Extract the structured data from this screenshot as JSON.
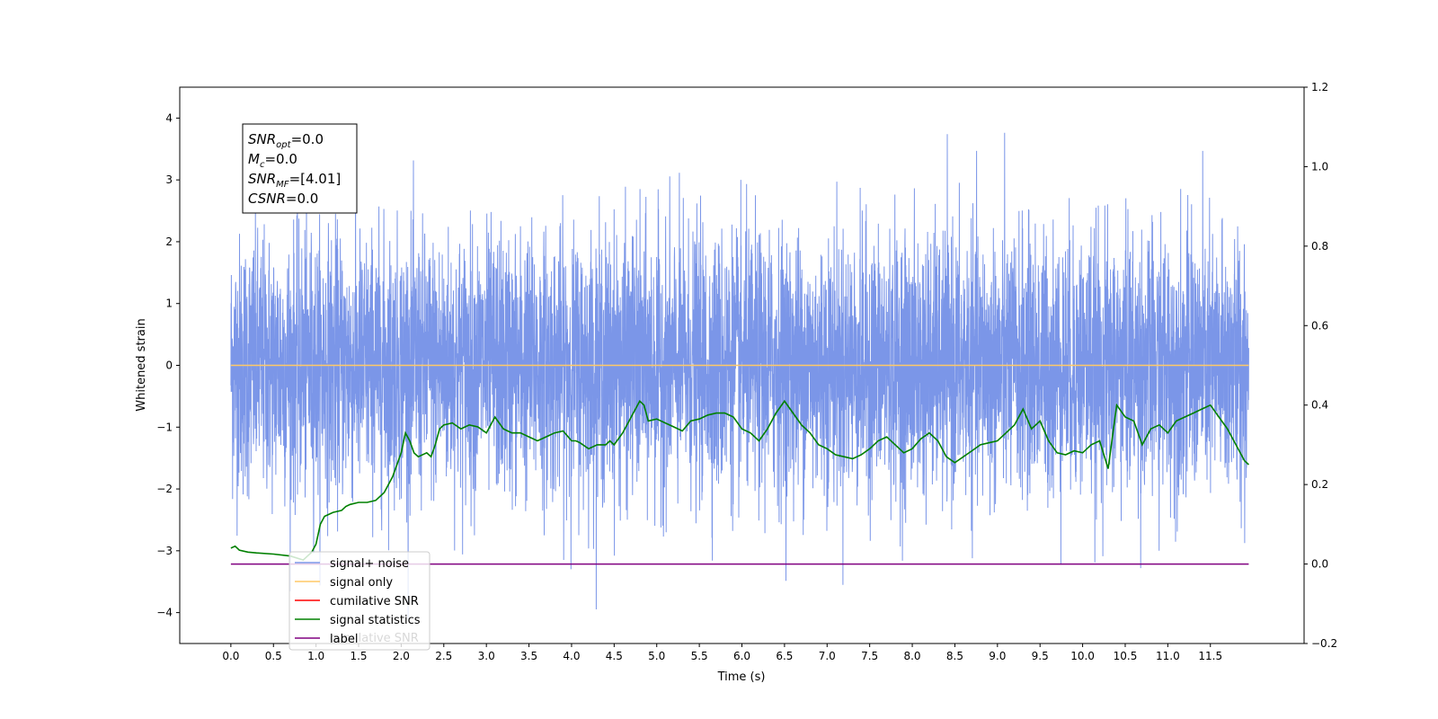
{
  "chart_data": {
    "type": "line",
    "xlabel": "Time (s)",
    "ylabel": "Whitened strain",
    "xlim": [
      -0.6,
      12.6
    ],
    "ylim": [
      -4.5,
      4.5
    ],
    "y2lim": [
      -0.2,
      1.2
    ],
    "x_ticks": [
      "0.0",
      "0.5",
      "1.0",
      "1.5",
      "2.0",
      "2.5",
      "3.0",
      "3.5",
      "4.0",
      "4.5",
      "5.0",
      "5.5",
      "6.0",
      "6.5",
      "7.0",
      "7.5",
      "8.0",
      "8.5",
      "9.0",
      "9.5",
      "10.0",
      "10.5",
      "11.0",
      "11.5"
    ],
    "y_ticks": [
      "-4",
      "-3",
      "-2",
      "-1",
      "0",
      "1",
      "2",
      "3",
      "4"
    ],
    "y2_ticks": [
      "-0.2",
      "0.0",
      "0.2",
      "0.4",
      "0.6",
      "0.8",
      "1.0",
      "1.2"
    ],
    "annotation": {
      "lines": [
        {
          "main": "SNR",
          "sub": "opt",
          "rest": "=0.0"
        },
        {
          "main": "M",
          "sub": "c",
          "rest": "=0.0"
        },
        {
          "main": "SNR",
          "sub": "MF",
          "rest": "=[4.01]"
        },
        {
          "main": "CSNR",
          "sub": "",
          "rest": "=0.0"
        }
      ]
    },
    "legend": {
      "placement": "lower-left",
      "entries": [
        {
          "label": "signal+ noise",
          "color": "#7b96e8"
        },
        {
          "label": "signal only",
          "color": "#ffc966"
        },
        {
          "label": "cumilative SNR",
          "color": "#ff0000"
        },
        {
          "label": "signal statistics",
          "color": "#008000"
        },
        {
          "label": "label",
          "color": "#800080"
        }
      ],
      "hidden_label": "cumilative SNR"
    },
    "series": [
      {
        "name": "signal+ noise",
        "color": "#7b96e8",
        "axis": "left",
        "style": "noise",
        "x_start": 0.0,
        "x_end": 11.95,
        "mean": 0.0,
        "approx_range": [
          -4.1,
          4.05
        ]
      },
      {
        "name": "signal only",
        "color": "#ffc966",
        "axis": "left",
        "x": [
          0.0,
          11.95
        ],
        "y": [
          0.0,
          0.0
        ]
      },
      {
        "name": "signal statistics",
        "color": "#008000",
        "axis": "right",
        "x": [
          0.0,
          0.05,
          0.1,
          0.2,
          0.3,
          0.5,
          0.7,
          0.85,
          0.95,
          1.0,
          1.05,
          1.1,
          1.2,
          1.3,
          1.35,
          1.4,
          1.5,
          1.6,
          1.7,
          1.8,
          1.9,
          2.0,
          2.05,
          2.1,
          2.15,
          2.2,
          2.3,
          2.35,
          2.4,
          2.45,
          2.5,
          2.6,
          2.7,
          2.75,
          2.8,
          2.9,
          3.0,
          3.1,
          3.2,
          3.3,
          3.4,
          3.5,
          3.6,
          3.7,
          3.8,
          3.9,
          4.0,
          4.05,
          4.1,
          4.2,
          4.3,
          4.4,
          4.45,
          4.5,
          4.6,
          4.7,
          4.8,
          4.85,
          4.9,
          5.0,
          5.1,
          5.2,
          5.3,
          5.4,
          5.5,
          5.6,
          5.7,
          5.8,
          5.9,
          6.0,
          6.1,
          6.2,
          6.3,
          6.4,
          6.5,
          6.6,
          6.7,
          6.8,
          6.9,
          7.0,
          7.1,
          7.2,
          7.3,
          7.4,
          7.5,
          7.6,
          7.7,
          7.8,
          7.9,
          8.0,
          8.1,
          8.2,
          8.3,
          8.4,
          8.5,
          8.6,
          8.7,
          8.8,
          8.9,
          9.0,
          9.1,
          9.2,
          9.3,
          9.4,
          9.5,
          9.6,
          9.7,
          9.8,
          9.9,
          10.0,
          10.1,
          10.2,
          10.3,
          10.4,
          10.5,
          10.6,
          10.7,
          10.8,
          10.9,
          11.0,
          11.1,
          11.2,
          11.3,
          11.4,
          11.5,
          11.6,
          11.7,
          11.8,
          11.9,
          11.95
        ],
        "y": [
          0.04,
          0.045,
          0.035,
          0.03,
          0.028,
          0.025,
          0.02,
          0.01,
          0.03,
          0.05,
          0.1,
          0.12,
          0.13,
          0.135,
          0.145,
          0.15,
          0.155,
          0.155,
          0.16,
          0.18,
          0.22,
          0.28,
          0.33,
          0.31,
          0.28,
          0.27,
          0.28,
          0.27,
          0.3,
          0.34,
          0.35,
          0.355,
          0.34,
          0.345,
          0.35,
          0.345,
          0.33,
          0.37,
          0.34,
          0.33,
          0.33,
          0.32,
          0.31,
          0.32,
          0.33,
          0.335,
          0.31,
          0.31,
          0.305,
          0.29,
          0.3,
          0.3,
          0.31,
          0.3,
          0.33,
          0.37,
          0.41,
          0.4,
          0.36,
          0.365,
          0.355,
          0.345,
          0.335,
          0.36,
          0.365,
          0.375,
          0.38,
          0.38,
          0.37,
          0.34,
          0.33,
          0.31,
          0.34,
          0.38,
          0.41,
          0.38,
          0.35,
          0.33,
          0.3,
          0.29,
          0.275,
          0.27,
          0.265,
          0.275,
          0.29,
          0.31,
          0.32,
          0.3,
          0.28,
          0.29,
          0.315,
          0.33,
          0.31,
          0.27,
          0.255,
          0.27,
          0.285,
          0.3,
          0.305,
          0.31,
          0.33,
          0.35,
          0.39,
          0.34,
          0.36,
          0.31,
          0.28,
          0.275,
          0.285,
          0.28,
          0.3,
          0.31,
          0.24,
          0.4,
          0.37,
          0.36,
          0.3,
          0.34,
          0.35,
          0.33,
          0.36,
          0.37,
          0.38,
          0.39,
          0.4,
          0.37,
          0.34,
          0.3,
          0.26,
          0.25
        ],
        "peaks": [
          {
            "x": 2.1,
            "y": 0.33
          },
          {
            "x": 4.8,
            "y": 0.41
          },
          {
            "x": 6.45,
            "y": 0.41
          },
          {
            "x": 9.3,
            "y": 0.39
          },
          {
            "x": 10.4,
            "y": 0.41
          },
          {
            "x": 11.45,
            "y": 0.42
          }
        ]
      },
      {
        "name": "label",
        "color": "#800080",
        "axis": "right",
        "x": [
          0.0,
          11.95
        ],
        "y": [
          0.0,
          0.0
        ]
      }
    ]
  }
}
